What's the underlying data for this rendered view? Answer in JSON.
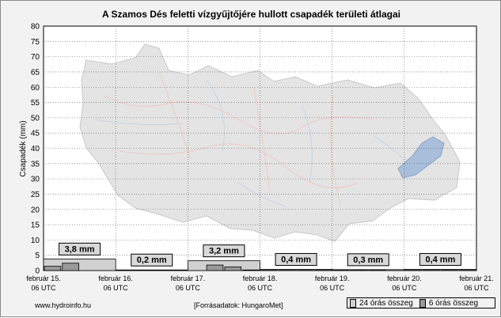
{
  "chart_data": {
    "type": "bar",
    "title": "A Szamos Dés feletti vízgyűjtőjére hullott csapadék területi átlagai",
    "ylabel": "Csapadék (mm)",
    "ylim": [
      0,
      80
    ],
    "yticks": [
      0,
      5,
      10,
      15,
      20,
      25,
      30,
      35,
      40,
      45,
      50,
      55,
      60,
      65,
      70,
      75,
      80
    ],
    "grid": true,
    "x_range_days": [
      0,
      6
    ],
    "x_ticks": [
      {
        "line1": "február 15.",
        "line2": "06 UTC"
      },
      {
        "line1": "február 16.",
        "line2": "06 UTC"
      },
      {
        "line1": "február 17.",
        "line2": "06 UTC"
      },
      {
        "line1": "február 18.",
        "line2": "06 UTC"
      },
      {
        "line1": "február 19.",
        "line2": "06 UTC"
      },
      {
        "line1": "február 20.",
        "line2": "06 UTC"
      },
      {
        "line1": "február 21.",
        "line2": "06 UTC"
      }
    ],
    "series": [
      {
        "name": "24 órás összeg",
        "color": "#d0d0d0",
        "values": [
          3.8,
          0.2,
          3.2,
          0.4,
          0.3,
          0.4
        ],
        "labels": [
          "3,8 mm",
          "0,2 mm",
          "3,2 mm",
          "0,4 mm",
          "0,3 mm",
          "0,4 mm"
        ]
      },
      {
        "name": "6 órás összeg",
        "color": "#9a9a9a",
        "values": [
          1.4,
          2.4,
          0.0,
          0.0,
          0.0,
          0.0,
          0.0,
          0.0,
          0.0,
          1.8,
          1.2,
          0.2,
          0.1,
          0.1,
          0.1,
          0.1,
          0.1,
          0.1,
          0.1,
          0.0,
          0.1,
          0.1,
          0.1,
          0.1
        ]
      }
    ],
    "legend_position": "bottom-right"
  },
  "footer": {
    "site": "www.hydroinfo.hu",
    "source": "[Forrásadatok: HungaroMet]"
  },
  "legend": {
    "item24": "24 órás összeg",
    "item6": "6 órás összeg"
  },
  "colors": {
    "background": "#f2f2f2",
    "plot_area": "#ffffff",
    "grid": "#4a4a4a",
    "map_fill": "#e6e6e6",
    "lake": "#a9bedb"
  }
}
